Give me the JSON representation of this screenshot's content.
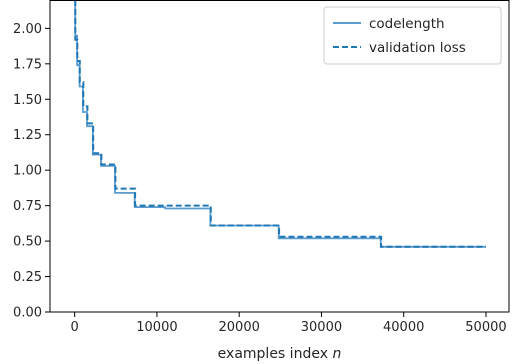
{
  "chart_data": {
    "type": "line",
    "title": "",
    "xlabel": "examples index",
    "xlabel_var": "n",
    "ylabel": "",
    "xlim": [
      -3000,
      52800
    ],
    "ylim": [
      0,
      2.2
    ],
    "xticks": [
      0,
      10000,
      20000,
      30000,
      40000,
      50000
    ],
    "xtick_labels": [
      "0",
      "10000",
      "20000",
      "30000",
      "40000",
      "50000"
    ],
    "yticks": [
      0,
      0.25,
      0.5,
      0.75,
      1.0,
      1.25,
      1.5,
      1.75,
      2.0
    ],
    "ytick_labels": [
      "0.00",
      "0.25",
      "0.50",
      "0.75",
      "1.00",
      "1.25",
      "1.50",
      "1.75",
      "2.00"
    ],
    "grid": false,
    "legend_position": "top-right",
    "series": [
      {
        "name": "codelength",
        "style": "solid",
        "color": "#5b9bd0",
        "x": [
          60,
          60,
          300,
          300,
          600,
          600,
          1000,
          1000,
          1500,
          1500,
          2200,
          2200,
          3200,
          3200,
          4900,
          4900,
          7300,
          7300,
          11000,
          11000,
          16500,
          16500,
          24800,
          24800,
          37200,
          37200,
          50000
        ],
        "y": [
          2.2,
          1.95,
          1.95,
          1.74,
          1.74,
          1.59,
          1.59,
          1.41,
          1.41,
          1.31,
          1.31,
          1.11,
          1.11,
          1.03,
          1.03,
          0.84,
          0.84,
          0.74,
          0.74,
          0.73,
          0.73,
          0.61,
          0.61,
          0.52,
          0.52,
          0.46,
          0.46
        ]
      },
      {
        "name": "validation loss",
        "style": "dashed",
        "color": "#1f77b4",
        "x": [
          80,
          80,
          320,
          320,
          620,
          620,
          1050,
          1050,
          1550,
          1550,
          2250,
          2250,
          3250,
          3250,
          4950,
          4950,
          7350,
          7350,
          11050,
          11050,
          16550,
          16550,
          24850,
          24850,
          37250,
          37250,
          50000
        ],
        "y": [
          2.2,
          1.92,
          1.92,
          1.77,
          1.77,
          1.62,
          1.62,
          1.45,
          1.45,
          1.33,
          1.33,
          1.12,
          1.12,
          1.04,
          1.04,
          0.87,
          0.87,
          0.75,
          0.75,
          0.75,
          0.75,
          0.61,
          0.61,
          0.53,
          0.53,
          0.46,
          0.46
        ]
      }
    ]
  }
}
